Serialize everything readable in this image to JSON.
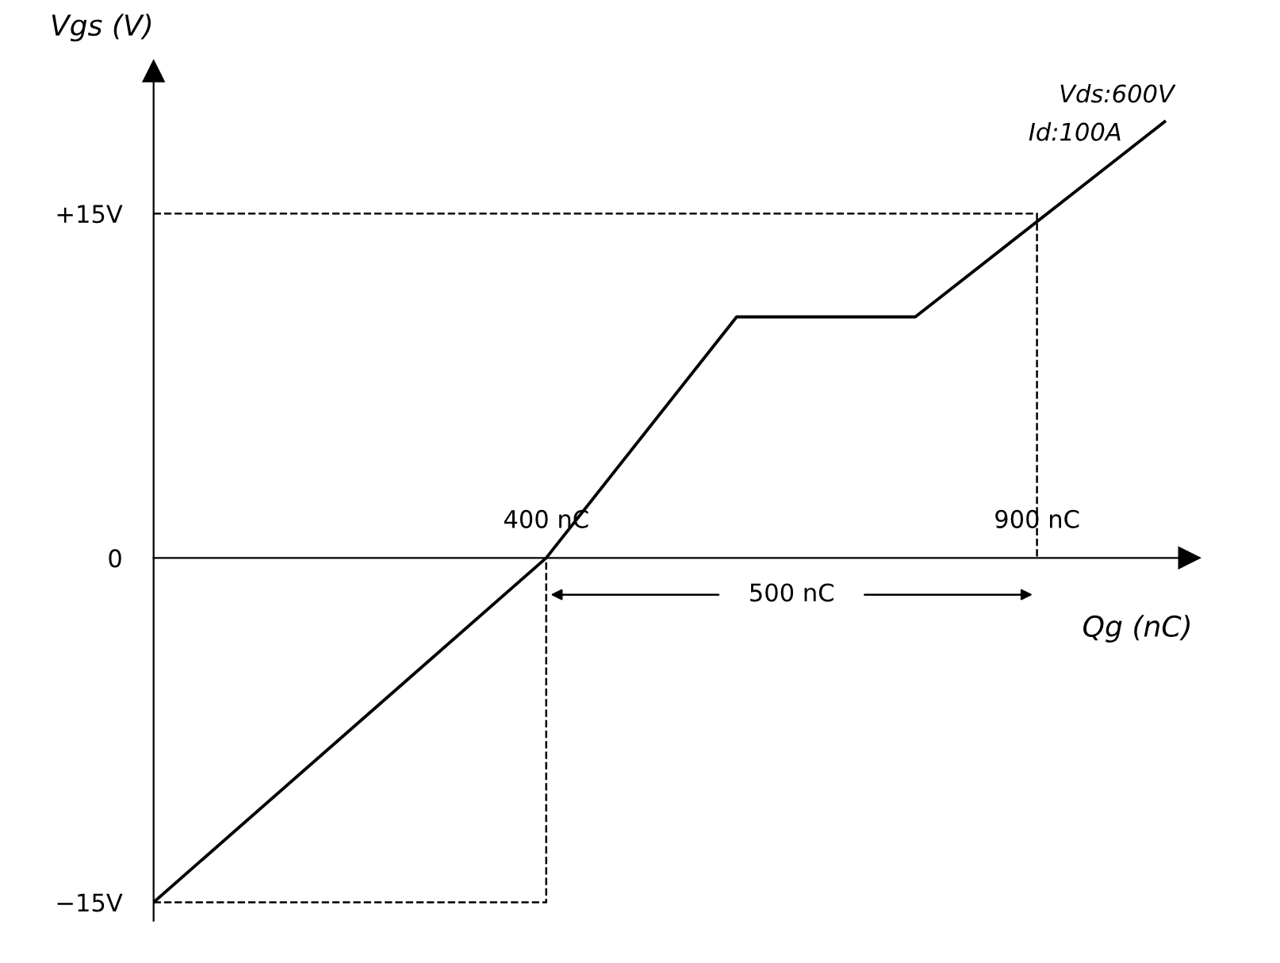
{
  "chart_data": {
    "type": "line",
    "xlabel": "Qg (nC)",
    "ylabel": "Vgs (V)",
    "xlim": [
      0,
      1055
    ],
    "ylim": [
      -15.8,
      21.2
    ],
    "yticks": [
      {
        "value": 15,
        "label": "+15V"
      },
      {
        "value": 0,
        "label": "0"
      },
      {
        "value": -15,
        "label": "−15V"
      }
    ],
    "xticks": [
      {
        "value": 400,
        "label": "400 nC"
      },
      {
        "value": 900,
        "label": "900 nC"
      }
    ],
    "grid": false,
    "marker": "none",
    "line_style": "solid",
    "series": [
      {
        "color": "#000000",
        "x": [
          0,
          400,
          594,
          776,
          1030
        ],
        "values": [
          -15,
          0,
          10.5,
          10.5,
          19
        ]
      },
      {
        "color": "#000000",
        "line_style": "dashed",
        "x": [
          0,
          400,
          400
        ],
        "values": [
          -15,
          -15,
          0
        ]
      },
      {
        "color": "#000000",
        "line_style": "dashed",
        "x": [
          0,
          900,
          900
        ],
        "values": [
          15,
          15,
          0
        ]
      }
    ],
    "annotations": [
      "Vds:600V",
      "Id:100A",
      "500 nC"
    ]
  }
}
